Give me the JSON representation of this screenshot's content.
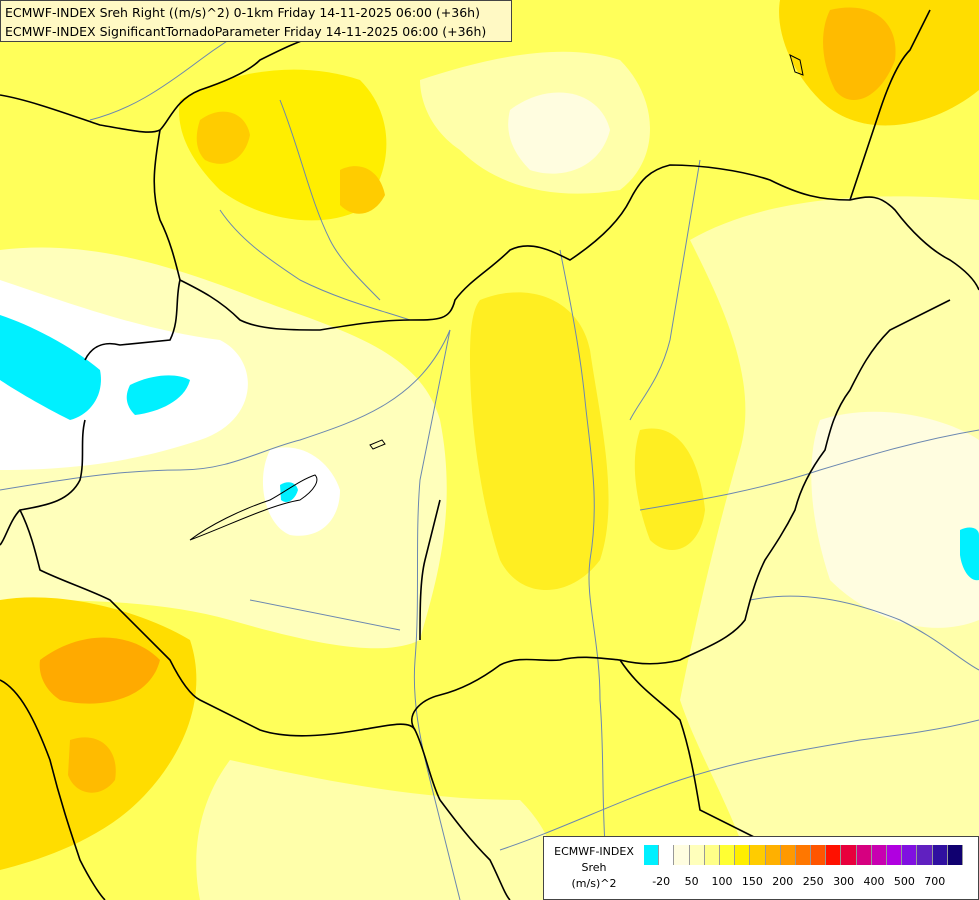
{
  "header": {
    "line1": "ECMWF-INDEX Sreh Right ((m/s)^2) 0-1km Friday 14-11-2025 06:00 (+36h)",
    "line2": "ECMWF-INDEX SignificantTornadoParameter Friday 14-11-2025 06:00 (+36h)"
  },
  "legend": {
    "source": "ECMWF-INDEX",
    "variable": "Sreh",
    "unit": "(m/s)^2",
    "colors": [
      "#00f0ff",
      "#ffffff",
      "#fffde0",
      "#ffffbb",
      "#ffff88",
      "#ffff33",
      "#ffee00",
      "#ffcc00",
      "#ffb000",
      "#ff9900",
      "#ff7700",
      "#ff5500",
      "#ff1100",
      "#e8003c",
      "#d60080",
      "#c800b0",
      "#b000e0",
      "#8010e0",
      "#6020c0",
      "#3010a0",
      "#100070"
    ],
    "ticks": [
      {
        "label": "-20",
        "index": 1
      },
      {
        "label": "50",
        "index": 3
      },
      {
        "label": "100",
        "index": 5
      },
      {
        "label": "150",
        "index": 7
      },
      {
        "label": "200",
        "index": 9
      },
      {
        "label": "250",
        "index": 11
      },
      {
        "label": "300",
        "index": 13
      },
      {
        "label": "400",
        "index": 15
      },
      {
        "label": "500",
        "index": 17
      },
      {
        "label": "700",
        "index": 19
      }
    ]
  }
}
